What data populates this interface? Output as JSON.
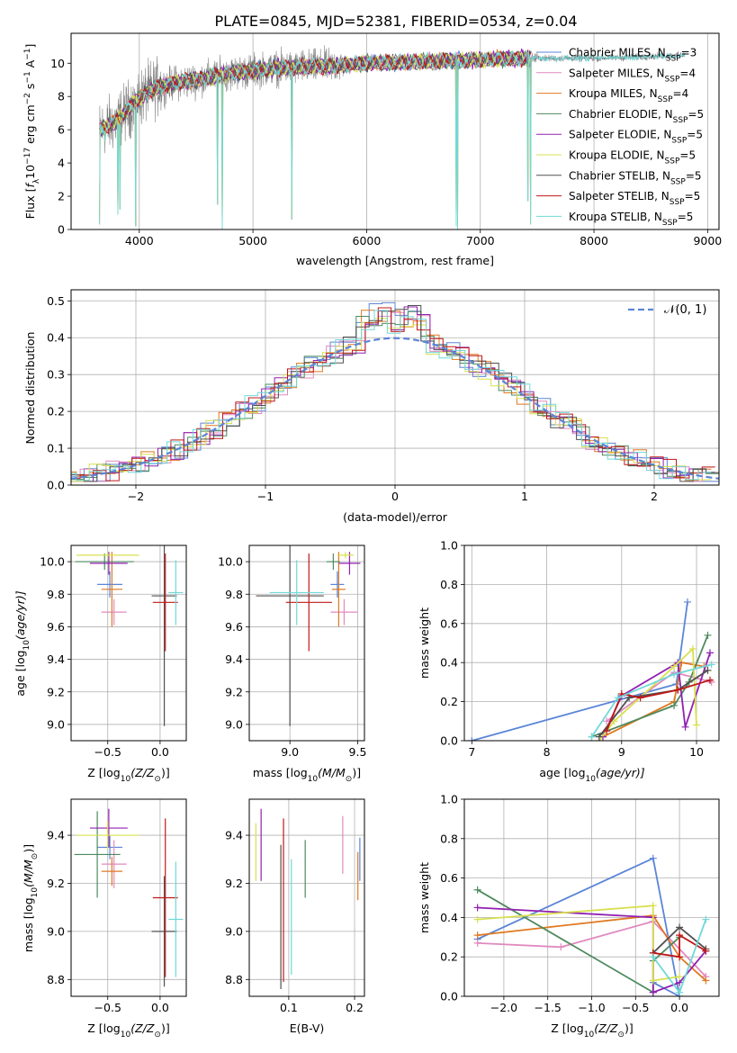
{
  "title": "PLATE=0845, MJD=52381, FIBERID=0534, z=0.04",
  "colors": {
    "chabrier_miles": "#5B85D8",
    "salpeter_miles": "#E08AC0",
    "kroupa_miles": "#E07820",
    "chabrier_elodie": "#4E8A5E",
    "salpeter_elodie": "#9020B0",
    "kroupa_elodie": "#D8E050",
    "chabrier_stelib": "#505050",
    "salpeter_stelib": "#C01818",
    "kroupa_stelib": "#70D8D8",
    "data": "#808080"
  },
  "chart_data": [
    {
      "type": "line",
      "id": "spectrum",
      "ylabel_main": "Flux [",
      "ylabel_f": "f",
      "ylabel_sub": "λ",
      "ylabel_num": "10",
      "ylabel_exp1": "−17",
      "ylabel_mid": " erg cm",
      "ylabel_exp2": "−2",
      "ylabel_s": " s",
      "ylabel_exp3": "−1",
      "ylabel_a": " A",
      "ylabel_exp4": "−1",
      "ylabel_end": "]",
      "xlabel": "wavelength [Angstrom, rest frame]",
      "xlim": [
        3400,
        9100
      ],
      "ylim": [
        0,
        11.8
      ],
      "xticks": [
        "4000",
        "5000",
        "6000",
        "7000",
        "8000",
        "9000"
      ],
      "xtick_values": [
        4000,
        5000,
        6000,
        7000,
        8000,
        9000
      ],
      "yticks": [
        "0",
        "2",
        "4",
        "6",
        "8",
        "10"
      ],
      "ytick_values": [
        0,
        2,
        4,
        6,
        8,
        10
      ],
      "legend": [
        {
          "pre": "Chabrier MILES, N",
          "sub": "SSP",
          "post": "=3",
          "color": "#5B85D8"
        },
        {
          "pre": "Salpeter MILES, N",
          "sub": "SSP",
          "post": "=4",
          "color": "#E08AC0"
        },
        {
          "pre": "Kroupa MILES, N",
          "sub": "SSP",
          "post": "=4",
          "color": "#E07820"
        },
        {
          "pre": "Chabrier ELODIE, N",
          "sub": "SSP",
          "post": "=5",
          "color": "#4E8A5E"
        },
        {
          "pre": "Salpeter ELODIE, N",
          "sub": "SSP",
          "post": "=5",
          "color": "#9020B0"
        },
        {
          "pre": "Kroupa ELODIE, N",
          "sub": "SSP",
          "post": "=5",
          "color": "#D8E050"
        },
        {
          "pre": "Chabrier STELIB, N",
          "sub": "SSP",
          "post": "=5",
          "color": "#505050"
        },
        {
          "pre": "Salpeter STELIB, N",
          "sub": "SSP",
          "post": "=5",
          "color": "#C01818"
        },
        {
          "pre": "Kroupa STELIB, N",
          "sub": "SSP",
          "post": "=5",
          "color": "#70D8D8"
        }
      ],
      "continuum": [
        [
          3650,
          6.0
        ],
        [
          3800,
          6.5
        ],
        [
          3950,
          7.6
        ],
        [
          4100,
          8.4
        ],
        [
          4300,
          8.8
        ],
        [
          4500,
          9.0
        ],
        [
          4800,
          9.4
        ],
        [
          5200,
          9.7
        ],
        [
          5600,
          9.8
        ],
        [
          6000,
          10.0
        ],
        [
          6500,
          10.1
        ],
        [
          7000,
          10.2
        ],
        [
          7400,
          10.3
        ],
        [
          8000,
          10.3
        ],
        [
          8500,
          10.4
        ],
        [
          8800,
          10.5
        ]
      ],
      "data_range": [
        3650,
        8800
      ],
      "model_range": [
        3650,
        7450
      ],
      "dips": [
        [
          3650,
          0.3
        ],
        [
          3700,
          5.3
        ],
        [
          3810,
          0.9
        ],
        [
          3830,
          1.2
        ],
        [
          3970,
          0.2
        ],
        [
          4690,
          1.5
        ],
        [
          4730,
          0.0
        ],
        [
          5340,
          0.6
        ],
        [
          6790,
          0.2
        ],
        [
          6800,
          0.0
        ],
        [
          7420,
          1.7
        ],
        [
          7440,
          0.3
        ]
      ]
    },
    {
      "type": "step",
      "id": "residuals",
      "xlabel": "(data-model)/error",
      "ylabel": "Normed distribution",
      "xlim": [
        -2.5,
        2.5
      ],
      "ylim": [
        0,
        0.53
      ],
      "xticks": [
        "−2",
        "−1",
        "0",
        "1",
        "2"
      ],
      "xtick_values": [
        -2,
        -1,
        0,
        1,
        2
      ],
      "yticks": [
        "0.0",
        "0.1",
        "0.2",
        "0.3",
        "0.4",
        "0.5"
      ],
      "ytick_values": [
        0,
        0.1,
        0.2,
        0.3,
        0.4,
        0.5
      ],
      "legend_label": "𝒩(0, 1)",
      "bin_width": 0.1,
      "bin_start": -2.5
    },
    {
      "type": "scatter",
      "id": "age-vs-z",
      "xlabel_pre": "Z [log",
      "xlabel_sub": "10",
      "xlabel_post": "(Z/Z",
      "xlabel_sun": "⊙",
      "xlabel_end": ")]",
      "ylabel_pre": "age  [log",
      "ylabel_sub": "10",
      "ylabel_post": "(age/yr)]",
      "xlim": [
        -0.85,
        0.25
      ],
      "ylim": [
        8.9,
        10.1
      ],
      "xticks": [
        "−0.5",
        "0.0"
      ],
      "xtick_values": [
        -0.5,
        0.0
      ],
      "yticks": [
        "9.0",
        "9.2",
        "9.4",
        "9.6",
        "9.8",
        "10.0"
      ],
      "ytick_values": [
        9.0,
        9.2,
        9.4,
        9.6,
        9.8,
        10.0
      ],
      "points": [
        {
          "x": -0.48,
          "xerr": 0.12,
          "y": 9.86,
          "yerr": 0.08,
          "color": "#5B85D8"
        },
        {
          "x": -0.44,
          "xerr": 0.12,
          "y": 9.69,
          "yerr": 0.08,
          "color": "#E08AC0"
        },
        {
          "x": -0.46,
          "xerr": 0.1,
          "y": 9.83,
          "yerr": 0.23,
          "color": "#E07820"
        },
        {
          "x": -0.53,
          "xerr": 0.28,
          "y": 10.0,
          "yerr": 0.05,
          "color": "#4E8A5E"
        },
        {
          "x": -0.49,
          "xerr": 0.18,
          "y": 9.99,
          "yerr": 0.07,
          "color": "#9020B0"
        },
        {
          "x": -0.5,
          "xerr": 0.3,
          "y": 10.04,
          "yerr": 0.02,
          "color": "#D8E050"
        },
        {
          "x": 0.04,
          "xerr": 0.12,
          "y": 9.79,
          "yerr": 0.8,
          "color": "#505050"
        },
        {
          "x": 0.05,
          "xerr": 0.12,
          "y": 9.75,
          "yerr": 0.3,
          "color": "#C01818"
        },
        {
          "x": 0.15,
          "xerr": 0.07,
          "y": 9.81,
          "yerr": 0.2,
          "color": "#70D8D8"
        }
      ]
    },
    {
      "type": "scatter",
      "id": "age-vs-mass",
      "xlabel_pre": "mass [log",
      "xlabel_sub": "10",
      "xlabel_post": "(M/M",
      "xlabel_sun": "⊙",
      "xlabel_end": ")]",
      "xlim": [
        8.7,
        9.55
      ],
      "ylim": [
        8.9,
        10.1
      ],
      "xticks": [
        "9.0",
        "9.5"
      ],
      "xtick_values": [
        9.0,
        9.5
      ],
      "yticks": [
        "9.0",
        "9.2",
        "9.4",
        "9.6",
        "9.8",
        "10.0"
      ],
      "ytick_values": [
        9.0,
        9.2,
        9.4,
        9.6,
        9.8,
        10.0
      ],
      "points": [
        {
          "x": 9.35,
          "xerr": 0.05,
          "y": 9.86,
          "yerr": 0.08,
          "color": "#5B85D8"
        },
        {
          "x": 9.4,
          "xerr": 0.1,
          "y": 9.69,
          "yerr": 0.08,
          "color": "#E08AC0"
        },
        {
          "x": 9.36,
          "xerr": 0.05,
          "y": 9.83,
          "yerr": 0.23,
          "color": "#E07820"
        },
        {
          "x": 9.32,
          "xerr": 0.05,
          "y": 10.0,
          "yerr": 0.05,
          "color": "#4E8A5E"
        },
        {
          "x": 9.44,
          "xerr": 0.08,
          "y": 9.99,
          "yerr": 0.07,
          "color": "#9020B0"
        },
        {
          "x": 9.41,
          "xerr": 0.06,
          "y": 10.04,
          "yerr": 0.02,
          "color": "#D8E050"
        },
        {
          "x": 9.0,
          "xerr": 0.25,
          "y": 9.79,
          "yerr": 0.8,
          "color": "#505050"
        },
        {
          "x": 9.14,
          "xerr": 0.17,
          "y": 9.75,
          "yerr": 0.3,
          "color": "#C01818"
        },
        {
          "x": 9.05,
          "xerr": 0.2,
          "y": 9.81,
          "yerr": 0.2,
          "color": "#70D8D8"
        }
      ]
    },
    {
      "type": "line",
      "id": "massweight-vs-age",
      "xlabel_pre": "age  [log",
      "xlabel_sub": "10",
      "xlabel_post": "(age/yr)]",
      "ylabel": "mass weight",
      "xlim": [
        6.9,
        10.3
      ],
      "ylim": [
        0,
        1
      ],
      "xticks": [
        "7",
        "8",
        "9",
        "10"
      ],
      "xtick_values": [
        7,
        8,
        9,
        10
      ],
      "yticks": [
        "0.0",
        "0.2",
        "0.4",
        "0.6",
        "0.8",
        "1.0"
      ],
      "ytick_values": [
        0,
        0.2,
        0.4,
        0.6,
        0.8,
        1.0
      ],
      "series": [
        {
          "color": "#5B85D8",
          "x": [
            7.0,
            9.73,
            9.88
          ],
          "y": [
            0.0,
            0.29,
            0.71
          ]
        },
        {
          "color": "#E08AC0",
          "x": [
            8.8,
            9.7,
            10.2
          ],
          "y": [
            0.1,
            0.35,
            0.3
          ]
        },
        {
          "color": "#E07820",
          "x": [
            8.75,
            9.7,
            9.8,
            10.1
          ],
          "y": [
            0.02,
            0.2,
            0.4,
            0.38
          ]
        },
        {
          "color": "#4E8A5E",
          "x": [
            8.6,
            9.7,
            9.9,
            10.15
          ],
          "y": [
            0.02,
            0.18,
            0.3,
            0.54
          ]
        },
        {
          "color": "#9020B0",
          "x": [
            8.75,
            9.0,
            9.75,
            9.85,
            10.18
          ],
          "y": [
            0.02,
            0.23,
            0.4,
            0.07,
            0.45
          ]
        },
        {
          "color": "#D8E050",
          "x": [
            8.7,
            8.9,
            9.7,
            9.95,
            10.0
          ],
          "y": [
            0.0,
            0.1,
            0.38,
            0.47,
            0.08
          ]
        },
        {
          "color": "#505050",
          "x": [
            8.7,
            9.1,
            9.75,
            10.15
          ],
          "y": [
            0.02,
            0.22,
            0.26,
            0.36
          ]
        },
        {
          "color": "#C01818",
          "x": [
            8.8,
            9.0,
            9.25,
            9.75,
            10.18
          ],
          "y": [
            0.05,
            0.24,
            0.22,
            0.26,
            0.31
          ]
        },
        {
          "color": "#70D8D8",
          "x": [
            8.6,
            8.95,
            9.7,
            10.2
          ],
          "y": [
            0.02,
            0.22,
            0.34,
            0.39
          ]
        }
      ]
    },
    {
      "type": "scatter",
      "id": "mass-vs-z",
      "xlabel_pre": "Z [log",
      "xlabel_sub": "10",
      "xlabel_post": "(Z/Z",
      "xlabel_sun": "⊙",
      "xlabel_end": ")]",
      "ylabel_pre": "mass [log",
      "ylabel_sub": "10",
      "ylabel_post": "(M/M",
      "ylabel_sun": "⊙",
      "ylabel_end": ")]",
      "xlim": [
        -0.85,
        0.25
      ],
      "ylim": [
        8.73,
        9.55
      ],
      "xticks": [
        "−0.5",
        "0.0"
      ],
      "xtick_values": [
        -0.5,
        0.0
      ],
      "yticks": [
        "8.8",
        "9.0",
        "9.2",
        "9.4"
      ],
      "ytick_values": [
        8.8,
        9.0,
        9.2,
        9.4
      ],
      "points": [
        {
          "x": -0.48,
          "xerr": 0.12,
          "y": 9.35,
          "yerr": 0.05,
          "color": "#5B85D8"
        },
        {
          "x": -0.44,
          "xerr": 0.12,
          "y": 9.28,
          "yerr": 0.1,
          "color": "#E08AC0"
        },
        {
          "x": -0.46,
          "xerr": 0.1,
          "y": 9.25,
          "yerr": 0.06,
          "color": "#E07820"
        },
        {
          "x": -0.6,
          "xerr": 0.22,
          "y": 9.32,
          "yerr": 0.18,
          "color": "#4E8A5E"
        },
        {
          "x": -0.49,
          "xerr": 0.18,
          "y": 9.43,
          "yerr": 0.08,
          "color": "#9020B0"
        },
        {
          "x": -0.5,
          "xerr": 0.3,
          "y": 9.4,
          "yerr": 0.06,
          "color": "#D8E050"
        },
        {
          "x": 0.04,
          "xerr": 0.12,
          "y": 9.0,
          "yerr": 0.23,
          "color": "#505050"
        },
        {
          "x": 0.05,
          "xerr": 0.12,
          "y": 9.14,
          "yerr": 0.33,
          "color": "#C01818"
        },
        {
          "x": 0.15,
          "xerr": 0.07,
          "y": 9.05,
          "yerr": 0.24,
          "color": "#70D8D8"
        }
      ]
    },
    {
      "type": "scatter",
      "id": "mass-vs-ebv",
      "xlabel": "E(B-V)",
      "xlim": [
        0.04,
        0.215
      ],
      "ylim": [
        8.73,
        9.55
      ],
      "xticks": [
        "0.1",
        "0.2"
      ],
      "xtick_values": [
        0.1,
        0.2
      ],
      "yticks": [
        "8.8",
        "9.0",
        "9.2",
        "9.4"
      ],
      "ytick_values": [
        8.8,
        9.0,
        9.2,
        9.4
      ],
      "points": [
        {
          "x": 0.208,
          "y": 9.3,
          "yerr": 0.09,
          "color": "#5B85D8"
        },
        {
          "x": 0.182,
          "y": 9.36,
          "yerr": 0.12,
          "color": "#E08AC0"
        },
        {
          "x": 0.205,
          "y": 9.23,
          "yerr": 0.1,
          "color": "#E07820"
        },
        {
          "x": 0.125,
          "y": 9.26,
          "yerr": 0.12,
          "color": "#4E8A5E"
        },
        {
          "x": 0.058,
          "y": 9.36,
          "yerr": 0.15,
          "color": "#9020B0"
        },
        {
          "x": 0.05,
          "y": 9.33,
          "yerr": 0.12,
          "color": "#D8E050"
        },
        {
          "x": 0.088,
          "y": 9.06,
          "yerr": 0.3,
          "color": "#505050"
        },
        {
          "x": 0.092,
          "y": 9.13,
          "yerr": 0.34,
          "color": "#C01818"
        },
        {
          "x": 0.104,
          "y": 9.06,
          "yerr": 0.24,
          "color": "#70D8D8"
        }
      ]
    },
    {
      "type": "line",
      "id": "massweight-vs-z",
      "xlabel_pre": "Z [log",
      "xlabel_sub": "10",
      "xlabel_post": "(Z/Z",
      "xlabel_sun": "⊙",
      "xlabel_end": ")]",
      "ylabel": "mass weight",
      "xlim": [
        -2.45,
        0.45
      ],
      "ylim": [
        0,
        1
      ],
      "xticks": [
        "−2.0",
        "−1.5",
        "−1.0",
        "−0.5",
        "0.0"
      ],
      "xtick_values": [
        -2.0,
        -1.5,
        -1.0,
        -0.5,
        0.0
      ],
      "yticks": [
        "0.0",
        "0.2",
        "0.4",
        "0.6",
        "0.8",
        "1.0"
      ],
      "ytick_values": [
        0,
        0.2,
        0.4,
        0.6,
        0.8,
        1.0
      ],
      "series": [
        {
          "color": "#5B85D8",
          "x": [
            -2.3,
            -0.3,
            0.0,
            -0.3
          ],
          "y": [
            0.29,
            0.7,
            0.0,
            0.07
          ]
        },
        {
          "color": "#E08AC0",
          "x": [
            -2.3,
            -1.35,
            -0.3,
            0.3
          ],
          "y": [
            0.27,
            0.25,
            0.38,
            0.1
          ]
        },
        {
          "color": "#E07820",
          "x": [
            -2.3,
            -0.3,
            0.0,
            0.3
          ],
          "y": [
            0.31,
            0.41,
            0.2,
            0.08
          ]
        },
        {
          "color": "#4E8A5E",
          "x": [
            -2.3,
            -0.3,
            -0.3,
            0.0
          ],
          "y": [
            0.54,
            0.02,
            0.18,
            0.3
          ]
        },
        {
          "color": "#9020B0",
          "x": [
            -2.3,
            -0.3,
            -0.3,
            0.0,
            0.3
          ],
          "y": [
            0.45,
            0.4,
            0.02,
            0.07,
            0.23
          ]
        },
        {
          "color": "#D8E050",
          "x": [
            -2.3,
            -0.3,
            -0.3,
            0.0
          ],
          "y": [
            0.39,
            0.46,
            0.08,
            0.1
          ]
        },
        {
          "color": "#505050",
          "x": [
            -0.3,
            0.0,
            0.3
          ],
          "y": [
            0.22,
            0.35,
            0.24
          ]
        },
        {
          "color": "#C01818",
          "x": [
            -0.3,
            0.0,
            0.0,
            0.3
          ],
          "y": [
            0.22,
            0.2,
            0.31,
            0.23
          ]
        },
        {
          "color": "#70D8D8",
          "x": [
            -0.3,
            0.0,
            0.3
          ],
          "y": [
            0.2,
            0.02,
            0.39
          ]
        }
      ]
    }
  ]
}
